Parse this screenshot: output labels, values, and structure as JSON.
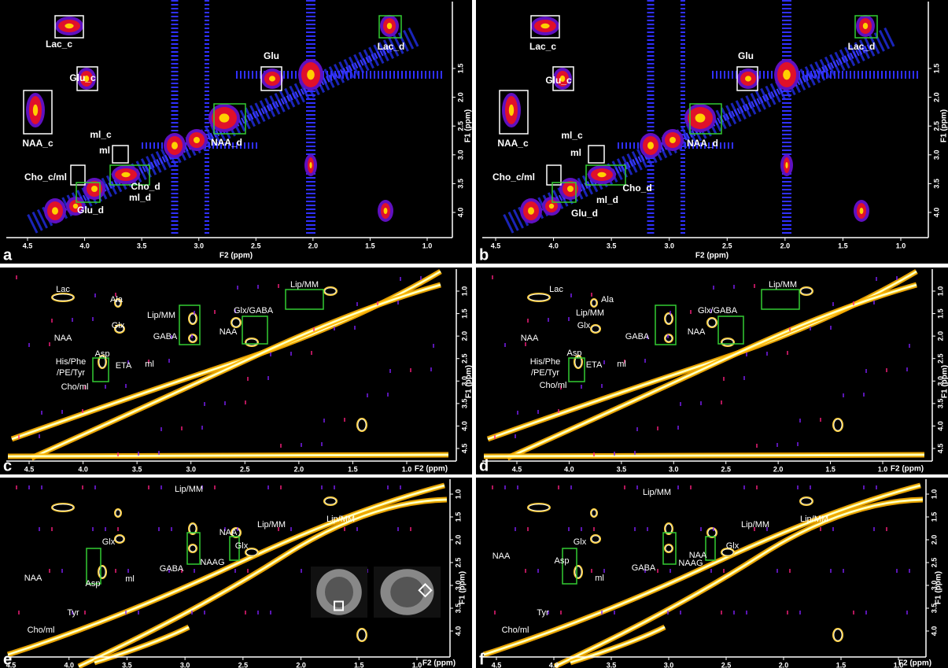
{
  "panels": [
    {
      "letter": "a",
      "x_label": "F2 (ppm)",
      "y_label": "F1 (ppm)",
      "x_ticks": [
        "4.5",
        "4.0",
        "3.5",
        "3.0",
        "2.5",
        "2.0",
        "1.5",
        "1.0"
      ],
      "y_ticks": [
        "1.5",
        "2.0",
        "2.5",
        "3.0",
        "3.5",
        "4.0"
      ],
      "labels": [
        "Lac_c",
        "Lac_d",
        "Glu",
        "Glu_c",
        "NAA_c",
        "NAA_d",
        "ml_c",
        "ml",
        "Cho_c/ml",
        "Cho_d",
        "Glu_d",
        "ml_d"
      ]
    },
    {
      "letter": "b",
      "x_label": "F2 (ppm)",
      "y_label": "F1 (ppm)",
      "x_ticks": [
        "4.5",
        "4.0",
        "3.5",
        "3.0",
        "2.5",
        "2.0",
        "1.5",
        "1.0"
      ],
      "y_ticks": [
        "1.5",
        "2.0",
        "2.5",
        "3.0",
        "3.5",
        "4.0"
      ],
      "labels": [
        "Lac_c",
        "Lac_d",
        "Glu",
        "Glu_c",
        "NAA_c",
        "NAA_d",
        "ml_c",
        "ml",
        "Cho_c/ml",
        "Cho_d",
        "Glu_d",
        "ml_d"
      ]
    },
    {
      "letter": "c",
      "x_label": "F2 (ppm)",
      "y_label": "F1 (ppm)",
      "x_ticks": [
        "4.5",
        "4.0",
        "3.5",
        "3.0",
        "2.5",
        "2.0",
        "1.5",
        "1.0"
      ],
      "y_ticks": [
        "1.0",
        "1.5",
        "2.0",
        "2.5",
        "3.0",
        "3.5",
        "4.0",
        "4.5"
      ],
      "labels": [
        "Lac",
        "Ala",
        "Lip/MM",
        "Glx",
        "Glx/GABA",
        "Lip/MM",
        "GABA",
        "NAA",
        "NAA",
        "Asp",
        "His/Phe",
        "/PE/Tyr",
        "ETA",
        "ml",
        "Cho/ml"
      ]
    },
    {
      "letter": "d",
      "x_label": "F2 (ppm)",
      "y_label": "F1 (ppm)",
      "x_ticks": [
        "4.5",
        "4.0",
        "3.5",
        "3.0",
        "2.5",
        "2.0",
        "1.5",
        "1.0"
      ],
      "y_ticks": [
        "1.0",
        "1.5",
        "2.0",
        "2.5",
        "3.0",
        "3.5",
        "4.0",
        "4.5"
      ],
      "labels": [
        "Lac",
        "Ala",
        "Lip/MM",
        "Glx",
        "Glx/GABA",
        "Lip/MM",
        "GABA",
        "NAA",
        "NAA",
        "Asp",
        "His/Phe",
        "/PE/Tyr",
        "ETA",
        "ml",
        "Cho/ml"
      ]
    },
    {
      "letter": "e",
      "x_label": "F2 (ppm)",
      "y_label": "F1 (ppm)",
      "x_ticks": [
        "4.5",
        "4.0",
        "3.5",
        "3.0",
        "2.5",
        "2.0",
        "1.5",
        "1.0"
      ],
      "y_ticks": [
        "1.0",
        "1.5",
        "2.0",
        "2.5",
        "3.0",
        "3.5",
        "4.0"
      ],
      "labels": [
        "Lip/MM",
        "Lip/MM",
        "Lip/MM",
        "Glx",
        "NAA",
        "NAAG",
        "GABA",
        "Glx",
        "NAA",
        "Asp",
        "ml",
        "Tyr",
        "Cho/ml"
      ]
    },
    {
      "letter": "f",
      "x_label": "F2 (ppm)",
      "y_label": "F1 (ppm)",
      "x_ticks": [
        "4.5",
        "4.0",
        "3.5",
        "3.0",
        "2.5",
        "2.0",
        "1.5",
        "1.0"
      ],
      "y_ticks": [
        "1.0",
        "1.5",
        "2.0",
        "2.5",
        "3.0",
        "3.5",
        "4.0"
      ],
      "labels": [
        "Lip/MM",
        "Lip/MM",
        "Lip/MM",
        "Glx",
        "NAA",
        "NAAG",
        "GABA",
        "Glx",
        "NAA",
        "Asp",
        "ml",
        "Tyr",
        "Cho/ml"
      ]
    }
  ]
}
